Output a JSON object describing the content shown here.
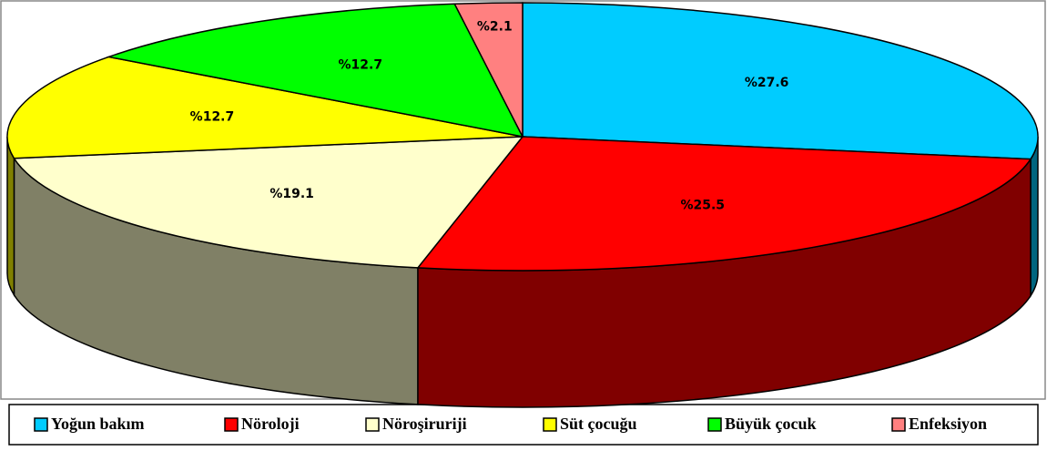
{
  "chart_data": {
    "type": "pie3d",
    "categories": [
      "Yoğun bakım",
      "Nöroloji",
      "Nöroşiruriji",
      "Süt çocuğu",
      "Büyük çocuk",
      "Enfeksiyon"
    ],
    "values": [
      27.6,
      25.5,
      19.1,
      12.7,
      12.7,
      2.1
    ],
    "value_labels": [
      "%27.6",
      "%25.5",
      "%19.1",
      "%12.7",
      "%12.7",
      "%2.1"
    ],
    "colors": [
      "#00ccff",
      "#ff0000",
      "#ffffcc",
      "#ffff00",
      "#00ff00",
      "#ff8080"
    ],
    "legend": "bottom"
  }
}
